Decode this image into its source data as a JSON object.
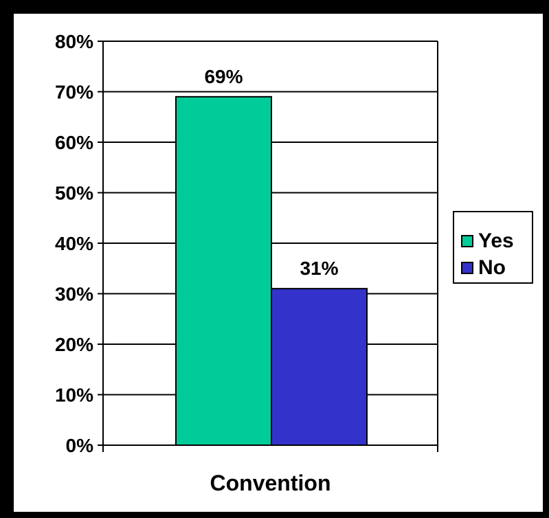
{
  "chart_data": {
    "type": "bar",
    "categories": [
      "Convention"
    ],
    "series": [
      {
        "name": "Yes",
        "values": [
          69
        ],
        "label": "69%",
        "color": "#00cc99"
      },
      {
        "name": "No",
        "values": [
          31
        ],
        "label": "31%",
        "color": "#3333cc"
      }
    ],
    "xlabel": "Convention",
    "ylabel": "",
    "ylim": [
      0,
      80
    ],
    "yticks": [
      {
        "value": 0,
        "label": "0%"
      },
      {
        "value": 10,
        "label": "10%"
      },
      {
        "value": 20,
        "label": "20%"
      },
      {
        "value": 30,
        "label": "30%"
      },
      {
        "value": 40,
        "label": "40%"
      },
      {
        "value": 50,
        "label": "50%"
      },
      {
        "value": 60,
        "label": "60%"
      },
      {
        "value": 70,
        "label": "70%"
      },
      {
        "value": 80,
        "label": "80%"
      }
    ],
    "grid": true,
    "legend": {
      "placement": "right",
      "entries": [
        "Yes",
        "No"
      ]
    }
  }
}
